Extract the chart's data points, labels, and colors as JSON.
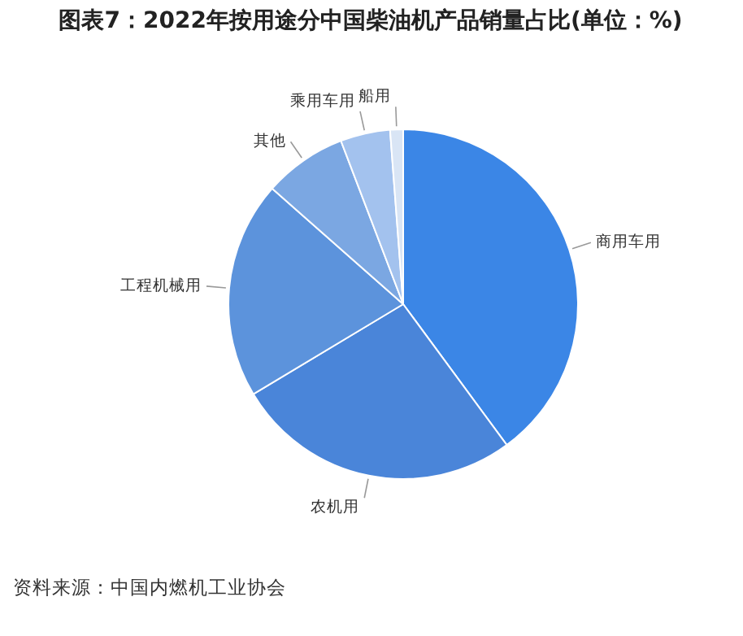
{
  "chart_data": {
    "type": "pie",
    "title": "图表7：2022年按用途分中国柴油机产品销量占比(单位：%)",
    "categories": [
      "商用车用",
      "农机用",
      "工程机械用",
      "其他",
      "乘用车用",
      "船用"
    ],
    "values": [
      39.9,
      26.5,
      20.1,
      7.7,
      4.6,
      1.2
    ],
    "colors": [
      "#3b86e6",
      "#4a85d9",
      "#5c93dc",
      "#7ba7e2",
      "#a3c2ee",
      "#d9e5f5"
    ],
    "annotations": [
      "资料来源：中国内燃机工业协会"
    ],
    "legend": false
  }
}
